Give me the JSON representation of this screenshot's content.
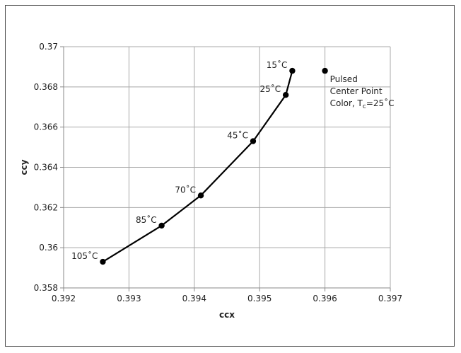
{
  "chart_data": {
    "type": "scatter",
    "title": "",
    "xlabel": "ccx",
    "ylabel": "ccy",
    "xlim": [
      0.392,
      0.397
    ],
    "ylim": [
      0.358,
      0.37
    ],
    "x_ticks": [
      "0.392",
      "0.393",
      "0.394",
      "0.395",
      "0.396",
      "0.397"
    ],
    "y_ticks": [
      "0.358",
      "0.36",
      "0.362",
      "0.364",
      "0.366",
      "0.368",
      "0.37"
    ],
    "grid": true,
    "series": [
      {
        "style": "line-with-markers",
        "color": "#000000",
        "points": [
          {
            "x": 0.3926,
            "y": 0.3593,
            "label": "105˚C"
          },
          {
            "x": 0.3935,
            "y": 0.3611,
            "label": "85˚C"
          },
          {
            "x": 0.3941,
            "y": 0.3626,
            "label": "70˚C"
          },
          {
            "x": 0.3949,
            "y": 0.3653,
            "label": "45˚C"
          },
          {
            "x": 0.3954,
            "y": 0.3676,
            "label": "25˚C"
          },
          {
            "x": 0.3955,
            "y": 0.3688,
            "label": "15˚C"
          }
        ]
      },
      {
        "style": "marker",
        "color": "#000000",
        "points": [
          {
            "x": 0.396,
            "y": 0.3688
          }
        ]
      }
    ],
    "annotation": {
      "line1": "Pulsed",
      "line2": "Center Point",
      "line3_prefix": "Color, T",
      "line3_sub": "c",
      "line3_suffix": "=25˚C"
    }
  }
}
